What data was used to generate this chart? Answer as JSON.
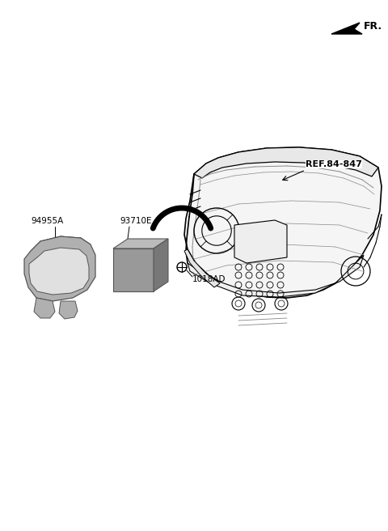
{
  "background_color": "#ffffff",
  "line_color": "#000000",
  "gray_fill": "#aaaaaa",
  "mid_gray": "#888888",
  "dark_gray": "#555555",
  "light_gray": "#cccccc",
  "fr_label": "FR.",
  "ref_label": "REF.84-847",
  "label_94955A": "94955A",
  "label_93710E": "93710E",
  "label_1018AD": "1018AD"
}
